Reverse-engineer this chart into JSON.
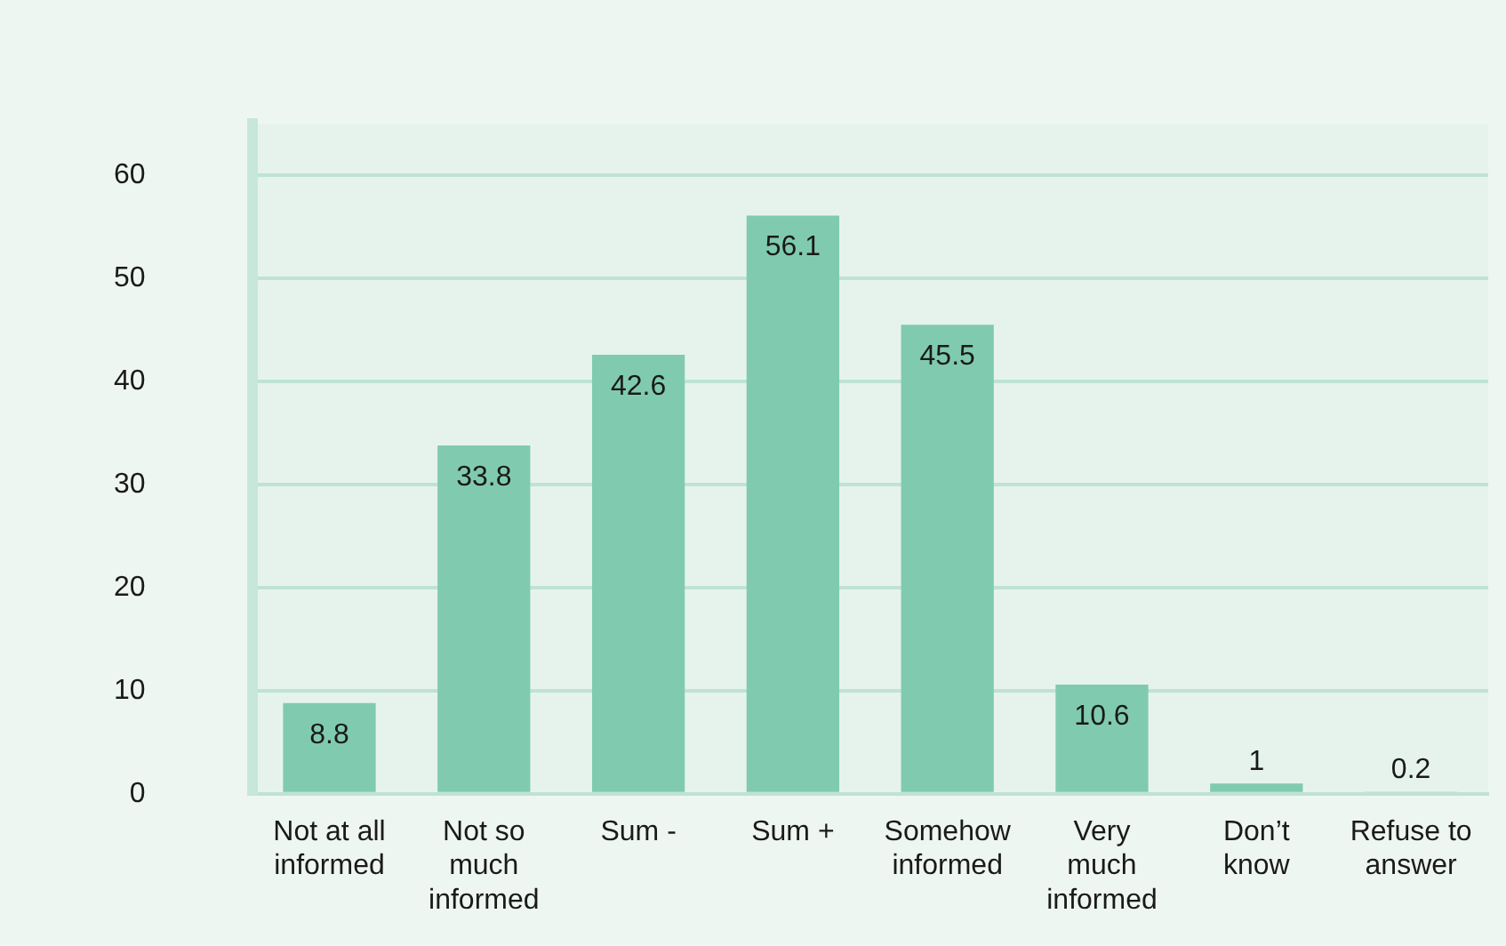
{
  "chart_data": {
    "type": "bar",
    "categories": [
      "Not at all informed",
      "Not so much informed",
      "Sum -",
      "Sum +",
      "Somehow informed",
      "Very much informed",
      "Don’t know",
      "Refuse to answer"
    ],
    "values": [
      8.8,
      33.8,
      42.6,
      56.1,
      45.5,
      10.6,
      1,
      0.2
    ],
    "color": "#80cbb0",
    "ylim": [
      0,
      65
    ],
    "yticks": [
      0,
      10,
      20,
      30,
      40,
      50,
      60
    ],
    "grid": "y",
    "data_labels": true,
    "legend": false
  }
}
